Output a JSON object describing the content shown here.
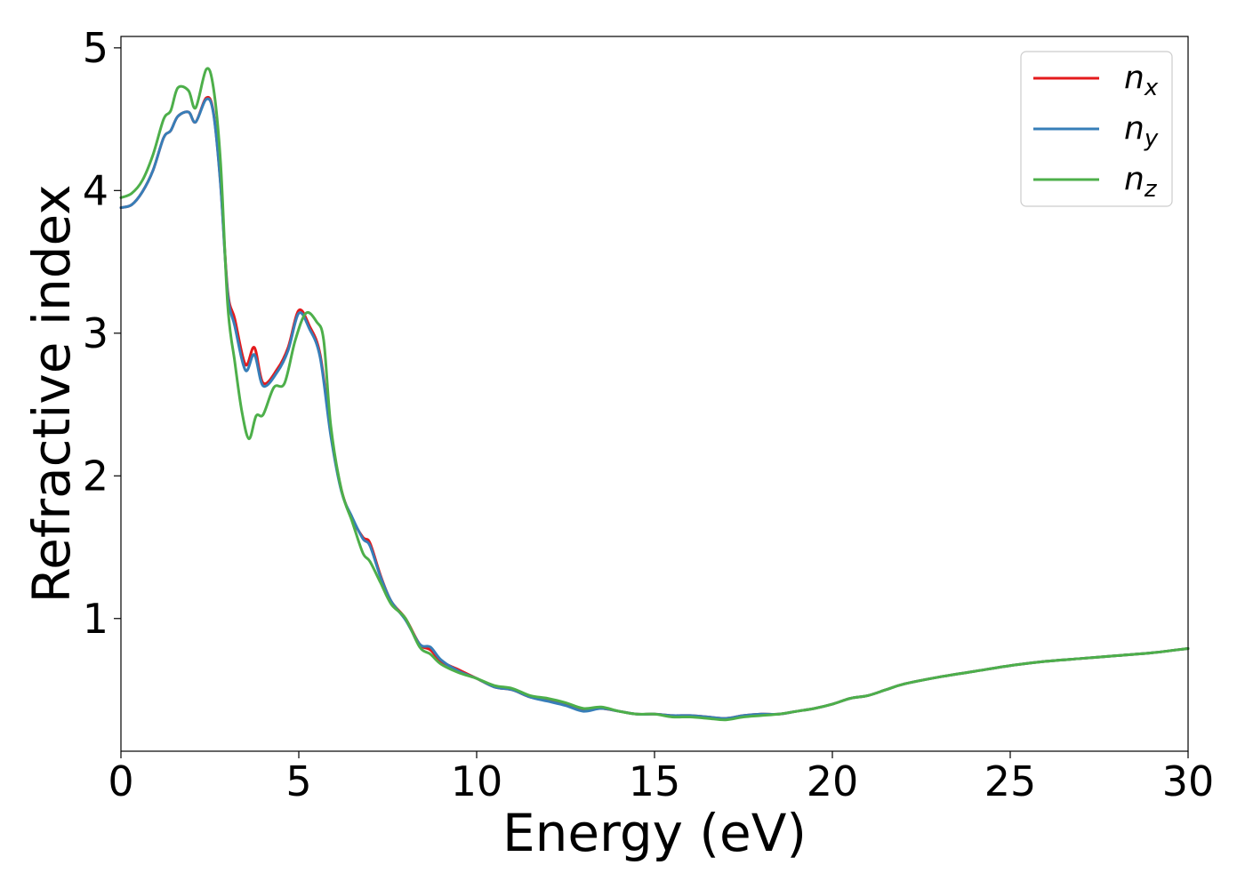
{
  "chart_data": {
    "type": "line",
    "title": "",
    "xlabel": "Energy (eV)",
    "ylabel": "Refractive index",
    "xlim": [
      0,
      30
    ],
    "ylim": [
      0.07,
      5.08
    ],
    "xticks": [
      0,
      5,
      10,
      15,
      20,
      25,
      30
    ],
    "yticks": [
      1,
      2,
      3,
      4,
      5
    ],
    "grid": false,
    "legend_position": "top-right",
    "series": [
      {
        "name": "n",
        "subscript": "x",
        "color": "#e41a1c",
        "points": [
          [
            0,
            3.88
          ],
          [
            0.3,
            3.9
          ],
          [
            0.6,
            3.99
          ],
          [
            0.9,
            4.14
          ],
          [
            1.2,
            4.37
          ],
          [
            1.4,
            4.42
          ],
          [
            1.6,
            4.52
          ],
          [
            1.9,
            4.55
          ],
          [
            2.1,
            4.48
          ],
          [
            2.4,
            4.65
          ],
          [
            2.6,
            4.55
          ],
          [
            2.8,
            4.05
          ],
          [
            3.0,
            3.3
          ],
          [
            3.2,
            3.1
          ],
          [
            3.5,
            2.78
          ],
          [
            3.75,
            2.9
          ],
          [
            4.0,
            2.65
          ],
          [
            4.4,
            2.75
          ],
          [
            4.7,
            2.9
          ],
          [
            5.0,
            3.16
          ],
          [
            5.3,
            3.05
          ],
          [
            5.6,
            2.85
          ],
          [
            5.9,
            2.3
          ],
          [
            6.2,
            1.9
          ],
          [
            6.5,
            1.7
          ],
          [
            6.8,
            1.57
          ],
          [
            7.0,
            1.53
          ],
          [
            7.3,
            1.3
          ],
          [
            7.6,
            1.12
          ],
          [
            8.0,
            1.0
          ],
          [
            8.4,
            0.82
          ],
          [
            8.7,
            0.78
          ],
          [
            9.0,
            0.7
          ],
          [
            9.5,
            0.64
          ],
          [
            10.0,
            0.58
          ],
          [
            10.5,
            0.52
          ],
          [
            11.0,
            0.5
          ],
          [
            11.5,
            0.45
          ],
          [
            12.0,
            0.43
          ],
          [
            12.5,
            0.4
          ],
          [
            13.0,
            0.36
          ],
          [
            13.5,
            0.37
          ],
          [
            14.0,
            0.35
          ],
          [
            14.5,
            0.33
          ],
          [
            15.0,
            0.33
          ],
          [
            15.5,
            0.32
          ],
          [
            16.0,
            0.32
          ],
          [
            16.5,
            0.31
          ],
          [
            17.0,
            0.3
          ],
          [
            17.5,
            0.32
          ],
          [
            18.0,
            0.33
          ],
          [
            18.5,
            0.33
          ],
          [
            19.0,
            0.35
          ],
          [
            19.5,
            0.37
          ],
          [
            20.0,
            0.4
          ],
          [
            20.5,
            0.44
          ],
          [
            21.0,
            0.46
          ],
          [
            21.5,
            0.5
          ],
          [
            22.0,
            0.54
          ],
          [
            23.0,
            0.59
          ],
          [
            24.0,
            0.63
          ],
          [
            25.0,
            0.67
          ],
          [
            26.0,
            0.7
          ],
          [
            27.0,
            0.72
          ],
          [
            28.0,
            0.74
          ],
          [
            29.0,
            0.76
          ],
          [
            30.0,
            0.79
          ]
        ]
      },
      {
        "name": "n",
        "subscript": "y",
        "color": "#377eb8",
        "points": [
          [
            0,
            3.88
          ],
          [
            0.3,
            3.9
          ],
          [
            0.6,
            3.99
          ],
          [
            0.9,
            4.14
          ],
          [
            1.2,
            4.37
          ],
          [
            1.4,
            4.42
          ],
          [
            1.6,
            4.52
          ],
          [
            1.9,
            4.55
          ],
          [
            2.1,
            4.48
          ],
          [
            2.4,
            4.64
          ],
          [
            2.6,
            4.54
          ],
          [
            2.8,
            4.04
          ],
          [
            3.0,
            3.28
          ],
          [
            3.2,
            3.05
          ],
          [
            3.5,
            2.74
          ],
          [
            3.75,
            2.85
          ],
          [
            4.0,
            2.63
          ],
          [
            4.4,
            2.73
          ],
          [
            4.7,
            2.88
          ],
          [
            5.0,
            3.14
          ],
          [
            5.3,
            3.03
          ],
          [
            5.6,
            2.83
          ],
          [
            5.9,
            2.28
          ],
          [
            6.2,
            1.89
          ],
          [
            6.5,
            1.71
          ],
          [
            6.8,
            1.56
          ],
          [
            7.0,
            1.51
          ],
          [
            7.3,
            1.29
          ],
          [
            7.6,
            1.12
          ],
          [
            8.0,
            0.99
          ],
          [
            8.4,
            0.82
          ],
          [
            8.7,
            0.8
          ],
          [
            9.0,
            0.71
          ],
          [
            9.5,
            0.63
          ],
          [
            10.0,
            0.58
          ],
          [
            10.5,
            0.52
          ],
          [
            11.0,
            0.5
          ],
          [
            11.5,
            0.45
          ],
          [
            12.0,
            0.42
          ],
          [
            12.5,
            0.39
          ],
          [
            13.0,
            0.35
          ],
          [
            13.5,
            0.37
          ],
          [
            14.0,
            0.35
          ],
          [
            14.5,
            0.33
          ],
          [
            15.0,
            0.33
          ],
          [
            15.5,
            0.32
          ],
          [
            16.0,
            0.32
          ],
          [
            16.5,
            0.31
          ],
          [
            17.0,
            0.3
          ],
          [
            17.5,
            0.32
          ],
          [
            18.0,
            0.33
          ],
          [
            18.5,
            0.33
          ],
          [
            19.0,
            0.35
          ],
          [
            19.5,
            0.37
          ],
          [
            20.0,
            0.4
          ],
          [
            20.5,
            0.44
          ],
          [
            21.0,
            0.46
          ],
          [
            21.5,
            0.5
          ],
          [
            22.0,
            0.54
          ],
          [
            23.0,
            0.59
          ],
          [
            24.0,
            0.63
          ],
          [
            25.0,
            0.67
          ],
          [
            26.0,
            0.7
          ],
          [
            27.0,
            0.72
          ],
          [
            28.0,
            0.74
          ],
          [
            29.0,
            0.76
          ],
          [
            30.0,
            0.79
          ]
        ]
      },
      {
        "name": "n",
        "subscript": "z",
        "color": "#4daf4a",
        "points": [
          [
            0,
            3.95
          ],
          [
            0.3,
            3.98
          ],
          [
            0.6,
            4.07
          ],
          [
            0.9,
            4.25
          ],
          [
            1.2,
            4.5
          ],
          [
            1.4,
            4.56
          ],
          [
            1.6,
            4.72
          ],
          [
            1.9,
            4.7
          ],
          [
            2.1,
            4.58
          ],
          [
            2.4,
            4.85
          ],
          [
            2.6,
            4.72
          ],
          [
            2.8,
            4.2
          ],
          [
            3.0,
            3.2
          ],
          [
            3.2,
            2.8
          ],
          [
            3.4,
            2.45
          ],
          [
            3.6,
            2.26
          ],
          [
            3.8,
            2.42
          ],
          [
            4.0,
            2.43
          ],
          [
            4.3,
            2.62
          ],
          [
            4.6,
            2.65
          ],
          [
            4.9,
            2.95
          ],
          [
            5.2,
            3.14
          ],
          [
            5.5,
            3.08
          ],
          [
            5.7,
            2.95
          ],
          [
            5.9,
            2.35
          ],
          [
            6.2,
            1.9
          ],
          [
            6.5,
            1.68
          ],
          [
            6.8,
            1.46
          ],
          [
            7.0,
            1.4
          ],
          [
            7.3,
            1.25
          ],
          [
            7.6,
            1.1
          ],
          [
            8.0,
            1.0
          ],
          [
            8.4,
            0.8
          ],
          [
            8.7,
            0.75
          ],
          [
            9.0,
            0.68
          ],
          [
            9.5,
            0.62
          ],
          [
            10.0,
            0.58
          ],
          [
            10.5,
            0.53
          ],
          [
            11.0,
            0.51
          ],
          [
            11.5,
            0.46
          ],
          [
            12.0,
            0.44
          ],
          [
            12.5,
            0.41
          ],
          [
            13.0,
            0.37
          ],
          [
            13.5,
            0.38
          ],
          [
            14.0,
            0.35
          ],
          [
            14.5,
            0.33
          ],
          [
            15.0,
            0.33
          ],
          [
            15.5,
            0.31
          ],
          [
            16.0,
            0.31
          ],
          [
            16.5,
            0.3
          ],
          [
            17.0,
            0.29
          ],
          [
            17.5,
            0.31
          ],
          [
            18.0,
            0.32
          ],
          [
            18.5,
            0.33
          ],
          [
            19.0,
            0.35
          ],
          [
            19.5,
            0.37
          ],
          [
            20.0,
            0.4
          ],
          [
            20.5,
            0.44
          ],
          [
            21.0,
            0.46
          ],
          [
            21.5,
            0.5
          ],
          [
            22.0,
            0.54
          ],
          [
            23.0,
            0.59
          ],
          [
            24.0,
            0.63
          ],
          [
            25.0,
            0.67
          ],
          [
            26.0,
            0.7
          ],
          [
            27.0,
            0.72
          ],
          [
            28.0,
            0.74
          ],
          [
            29.0,
            0.76
          ],
          [
            30.0,
            0.79
          ]
        ]
      }
    ]
  }
}
